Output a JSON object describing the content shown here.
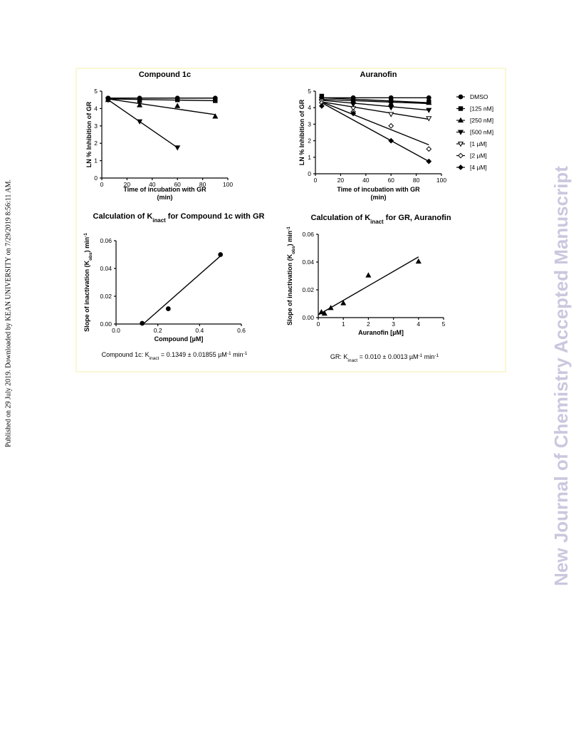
{
  "page": {
    "side_note": "Published on 29 July 2019. Downloaded by KEAN UNIVERSITY on 7/29/2019 8:56:11 AM.",
    "watermark": "New Journal of Chemistry Accepted Manuscript"
  },
  "chart_data": [
    {
      "type": "line",
      "title": [
        {
          "text": "Compound 1c"
        }
      ],
      "xlabel": [
        "Time of incubation with GR",
        "(min)"
      ],
      "ylabel": [
        {
          "text": "LN % Inhibition of GR"
        }
      ],
      "xlim": [
        0,
        100
      ],
      "ylim": [
        0,
        5
      ],
      "xticks": [
        0,
        20,
        40,
        60,
        80,
        100
      ],
      "yticks": [
        0,
        1,
        2,
        3,
        4,
        5
      ],
      "series": [
        {
          "marker": "circle",
          "color": "#000000",
          "x": [
            5,
            30,
            60,
            90
          ],
          "values": [
            4.6,
            4.6,
            4.6,
            4.6
          ],
          "fit": {
            "x": [
              5,
              90
            ],
            "y": [
              4.6,
              4.6
            ]
          }
        },
        {
          "marker": "square",
          "color": "#000000",
          "x": [
            5,
            30,
            60,
            90
          ],
          "values": [
            4.55,
            4.45,
            4.5,
            4.45
          ],
          "fit": {
            "x": [
              5,
              90
            ],
            "y": [
              4.55,
              4.45
            ]
          }
        },
        {
          "marker": "triangle-up",
          "color": "#000000",
          "x": [
            5,
            30,
            60,
            90
          ],
          "values": [
            4.5,
            4.2,
            4.15,
            3.55
          ],
          "fit": {
            "x": [
              5,
              90
            ],
            "y": [
              4.55,
              3.65
            ]
          }
        },
        {
          "marker": "triangle-down",
          "color": "#000000",
          "x": [
            5,
            30,
            60
          ],
          "values": [
            4.5,
            3.25,
            1.75
          ],
          "fit": {
            "x": [
              5,
              60
            ],
            "y": [
              4.5,
              1.75
            ]
          }
        }
      ]
    },
    {
      "type": "line",
      "title": [
        {
          "text": "Auranofin"
        }
      ],
      "xlabel": [
        "Time of incubation with GR",
        "(min)"
      ],
      "ylabel": [
        {
          "text": "LN % Inhibition of GR"
        }
      ],
      "xlim": [
        0,
        100
      ],
      "ylim": [
        0,
        5
      ],
      "xticks": [
        0,
        20,
        40,
        60,
        80,
        100
      ],
      "yticks": [
        0,
        1,
        2,
        3,
        4,
        5
      ],
      "series": [
        {
          "name": "DMSO",
          "marker": "circle",
          "color": "#000000",
          "x": [
            5,
            30,
            60,
            90
          ],
          "values": [
            4.6,
            4.6,
            4.6,
            4.6
          ],
          "fit": {
            "x": [
              5,
              90
            ],
            "y": [
              4.6,
              4.6
            ]
          }
        },
        {
          "name": "[125 nM]",
          "marker": "square",
          "color": "#000000",
          "x": [
            5,
            30,
            60,
            90
          ],
          "values": [
            4.7,
            4.5,
            4.4,
            4.35
          ],
          "fit": {
            "x": [
              5,
              90
            ],
            "y": [
              4.6,
              4.3
            ]
          }
        },
        {
          "name": "[250 nM]",
          "marker": "triangle-up",
          "color": "#000000",
          "x": [
            5,
            30,
            60,
            90
          ],
          "values": [
            4.55,
            4.4,
            4.25,
            4.3
          ],
          "fit": {
            "x": [
              5,
              90
            ],
            "y": [
              4.5,
              4.25
            ]
          }
        },
        {
          "name": "[500 nM]",
          "marker": "triangle-down",
          "color": "#000000",
          "x": [
            5,
            30,
            60,
            90
          ],
          "values": [
            4.5,
            4.2,
            4.0,
            3.85
          ],
          "fit": {
            "x": [
              5,
              90
            ],
            "y": [
              4.45,
              3.85
            ]
          }
        },
        {
          "name": "[1 µM]",
          "marker": "open-triangle-down",
          "color": "#000000",
          "x": [
            5,
            30,
            60,
            90
          ],
          "values": [
            4.4,
            3.95,
            3.6,
            3.35
          ],
          "fit": {
            "x": [
              5,
              90
            ],
            "y": [
              4.35,
              3.3
            ]
          }
        },
        {
          "name": "[2 µM]",
          "marker": "open-diamond",
          "color": "#000000",
          "x": [
            5,
            30,
            60,
            90
          ],
          "values": [
            4.3,
            3.75,
            2.9,
            1.5
          ],
          "fit": {
            "x": [
              5,
              90
            ],
            "y": [
              4.35,
              1.75
            ]
          }
        },
        {
          "name": "[4 µM]",
          "marker": "diamond",
          "color": "#000000",
          "x": [
            5,
            30,
            60,
            90
          ],
          "values": [
            4.1,
            3.65,
            2.0,
            0.75
          ],
          "fit": {
            "x": [
              5,
              90
            ],
            "y": [
              4.3,
              0.75
            ]
          }
        }
      ]
    },
    {
      "type": "scatter",
      "title": [
        {
          "text": "Calculation of K"
        },
        {
          "sub": "inact"
        },
        {
          "text": " for Compound 1c with GR"
        }
      ],
      "xlabel": "Compound [µM]",
      "ylabel": [
        {
          "text": "Slope of inactivation (K"
        },
        {
          "sub": "obs"
        },
        {
          "text": ") min"
        },
        {
          "sup": "-1"
        }
      ],
      "caption": [
        {
          "text": "Compound 1c: K"
        },
        {
          "sub": "inact"
        },
        {
          "text": " = 0.1349 ± 0.01855 µM"
        },
        {
          "sup": "-1"
        },
        {
          "text": " min"
        },
        {
          "sup": "-1"
        }
      ],
      "xlim": [
        0,
        0.6
      ],
      "ylim": [
        0,
        0.06
      ],
      "xticks": [
        {
          "value": 0,
          "label": "0.0"
        },
        0.2,
        0.4,
        0.6
      ],
      "yticks": [
        {
          "value": 0,
          "label": "0.00"
        },
        0.02,
        0.04,
        0.06
      ],
      "series": [
        {
          "marker": "circle",
          "color": "#000000",
          "x": [
            0.125,
            0.25,
            0.5
          ],
          "values": [
            0.0005,
            0.011,
            0.05
          ],
          "fit": {
            "x": [
              0.13,
              0.5
            ],
            "y": [
              0,
              0.049
            ]
          }
        }
      ]
    },
    {
      "type": "scatter",
      "title": [
        {
          "text": "Calculation of K"
        },
        {
          "sub": "inact"
        },
        {
          "text": " for GR, Auranofin"
        }
      ],
      "xlabel": "Auranofin [µM]",
      "ylabel": [
        {
          "text": "Slope of inactivation (K"
        },
        {
          "sub": "obs"
        },
        {
          "text": ") min"
        },
        {
          "sup": "-1"
        }
      ],
      "caption": [
        {
          "text": "GR: K"
        },
        {
          "sub": "inact"
        },
        {
          "text": " = 0.010 ± 0.0013 µM"
        },
        {
          "sup": "-1"
        },
        {
          "text": " min"
        },
        {
          "sup": "-1"
        }
      ],
      "xlim": [
        0,
        5
      ],
      "ylim": [
        0,
        0.06
      ],
      "xticks": [
        0,
        1,
        2,
        3,
        4,
        5
      ],
      "yticks": [
        {
          "value": 0,
          "label": "0.00"
        },
        0.02,
        0.04,
        0.06
      ],
      "series": [
        {
          "marker": "triangle-up",
          "color": "#000000",
          "x": [
            0.125,
            0.25,
            0.5,
            1,
            2,
            4
          ],
          "values": [
            0.004,
            0.003,
            0.007,
            0.0105,
            0.0305,
            0.0405
          ],
          "fit": {
            "x": [
              0,
              4
            ],
            "y": [
              0.002,
              0.0437
            ]
          }
        }
      ]
    }
  ]
}
